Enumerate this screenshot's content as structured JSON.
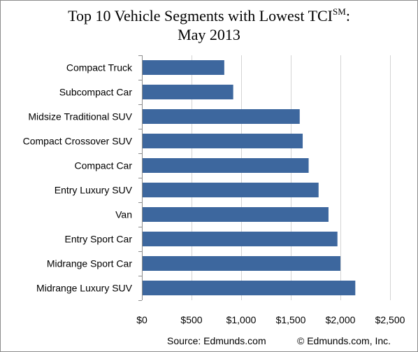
{
  "title": {
    "line1_main": "Top 10 Vehicle Segments with Lowest TCI",
    "line1_sup": "SM",
    "line1_end": ":",
    "line2": "May 2013"
  },
  "footer": {
    "source": "Source: Edmunds.com",
    "copyright": "© Edmunds.com, Inc."
  },
  "colors": {
    "bar": "#3d679e",
    "grid": "#d4d4d4",
    "axis": "#8c8c8c"
  },
  "chart_data": {
    "type": "bar",
    "orientation": "horizontal",
    "title": "Top 10 Vehicle Segments with Lowest TCI℠: May 2013",
    "xlabel": "",
    "ylabel": "",
    "xlim": [
      0,
      2500
    ],
    "grid": "vertical",
    "legend": "none",
    "categories": [
      "Compact Truck",
      "Subcompact Car",
      "Midsize Traditional SUV",
      "Compact Crossover SUV",
      "Compact Car",
      "Entry Luxury SUV",
      "Van",
      "Entry Sport Car",
      "Midrange Sport Car",
      "Midrange Luxury SUV"
    ],
    "values": [
      830,
      920,
      1590,
      1620,
      1680,
      1780,
      1880,
      1970,
      2000,
      2150
    ],
    "x_ticks": [
      0,
      500,
      1000,
      1500,
      2000,
      2500
    ],
    "x_tick_labels": [
      "$0",
      "$500",
      "$1,000",
      "$1,500",
      "$2,000",
      "$2,500"
    ]
  }
}
